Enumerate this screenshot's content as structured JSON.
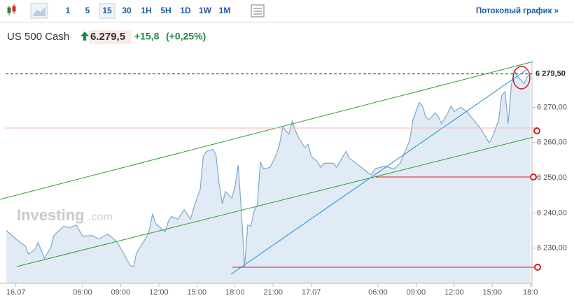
{
  "toolbar": {
    "intervals": [
      "1",
      "5",
      "15",
      "30",
      "1H",
      "5H",
      "1D",
      "1W",
      "1M"
    ],
    "selected": 2,
    "link": "Потоковый график »"
  },
  "quote": {
    "name": "US 500 Cash",
    "price": "6.279,5",
    "change": "+15,8",
    "change_pct": "(+0,25%)"
  },
  "watermark": {
    "brand": "Investing",
    "suffix": ".com"
  },
  "chart_data": {
    "type": "area",
    "x": [
      -3,
      0,
      3,
      4,
      6,
      7,
      9,
      11,
      12,
      15,
      17,
      19,
      21,
      24,
      26,
      29,
      32,
      34,
      36,
      37,
      38,
      41,
      42,
      43,
      44,
      47,
      48,
      49,
      51,
      53,
      55,
      56,
      57,
      58,
      59,
      60,
      62,
      63,
      64,
      65,
      66,
      68,
      69,
      70,
      71,
      72,
      73,
      74,
      75,
      76,
      77,
      78,
      80,
      82,
      83,
      84,
      86,
      87,
      88,
      89,
      91,
      92,
      93,
      95,
      96,
      97,
      100,
      101,
      103,
      104,
      105,
      108,
      111,
      112,
      113,
      116,
      119,
      121,
      123,
      124,
      125,
      127,
      128,
      129,
      130,
      132,
      133,
      134,
      136,
      137,
      138,
      140,
      142,
      145,
      146,
      148,
      149,
      150,
      152,
      153,
      154,
      155,
      156,
      157,
      158,
      160,
      161,
      162
    ],
    "series": [
      {
        "name": "US 500 Cash",
        "color": "#7fa8c9",
        "values": [
          6235.0,
          6232.6,
          6230.6,
          6228.3,
          6229.6,
          6231.6,
          6227.1,
          6230.2,
          6233.6,
          6236.2,
          6235.8,
          6236.6,
          6233.4,
          6233.6,
          6232.6,
          6234.0,
          6231.6,
          6228.3,
          6225.1,
          6224.7,
          6228.6,
          6233.0,
          6235.0,
          6239.6,
          6237.0,
          6234.6,
          6237.6,
          6239.0,
          6238.2,
          6241.0,
          6238.2,
          6241.4,
          6244.2,
          6246.5,
          6256.1,
          6257.5,
          6258.1,
          6256.5,
          6248.1,
          6242.6,
          6246.1,
          6244.2,
          6247.5,
          6253.5,
          6240.6,
          6224.7,
          6236.6,
          6236.2,
          6240.6,
          6242.2,
          6254.5,
          6252.5,
          6252.9,
          6256.5,
          6259.5,
          6264.4,
          6262.4,
          6266.0,
          6263.4,
          6261.5,
          6258.5,
          6259.5,
          6256.1,
          6254.5,
          6252.9,
          6254.1,
          6254.1,
          6252.9,
          6256.1,
          6257.5,
          6255.5,
          6253.5,
          6251.3,
          6250.9,
          6252.5,
          6253.3,
          6252.5,
          6254.1,
          6258.5,
          6260.5,
          6266.4,
          6271.4,
          6270.4,
          6267.4,
          6266.4,
          6268.4,
          6267.4,
          6265.4,
          6268.4,
          6270.4,
          6268.8,
          6270.0,
          6268.8,
          6265.4,
          6264.4,
          6261.5,
          6259.9,
          6261.5,
          6266.4,
          6273.4,
          6274.4,
          6265.4,
          6276.4,
          6280.3,
          6278.7,
          6276.8,
          6278.7,
          6279.5
        ]
      }
    ],
    "xlim": [
      -5,
      162.5
    ],
    "xticks": [
      {
        "value": 0,
        "label": "16.07"
      },
      {
        "value": 21,
        "label": "06:00"
      },
      {
        "value": 33,
        "label": "09:00"
      },
      {
        "value": 45,
        "label": "12:00"
      },
      {
        "value": 57,
        "label": "15:00"
      },
      {
        "value": 69,
        "label": "18:00"
      },
      {
        "value": 81,
        "label": "21:00"
      },
      {
        "value": 93,
        "label": "17.07"
      },
      {
        "value": 114,
        "label": "06:00"
      },
      {
        "value": 126,
        "label": "09:00"
      },
      {
        "value": 138,
        "label": "12:00"
      },
      {
        "value": 150,
        "label": "15:00"
      },
      {
        "value": 162,
        "label": "18:0"
      }
    ],
    "ylim": [
      6220,
      6283
    ],
    "yticks": [
      {
        "value": 6230,
        "label": "6 230,00"
      },
      {
        "value": 6240,
        "label": "6 240,00"
      },
      {
        "value": 6250,
        "label": "6 250,00"
      },
      {
        "value": 6260,
        "label": "6 260,00"
      },
      {
        "value": 6270,
        "label": "6 270,00"
      }
    ],
    "last_price": {
      "value": 6279.5,
      "label": "6 279,50"
    }
  }
}
